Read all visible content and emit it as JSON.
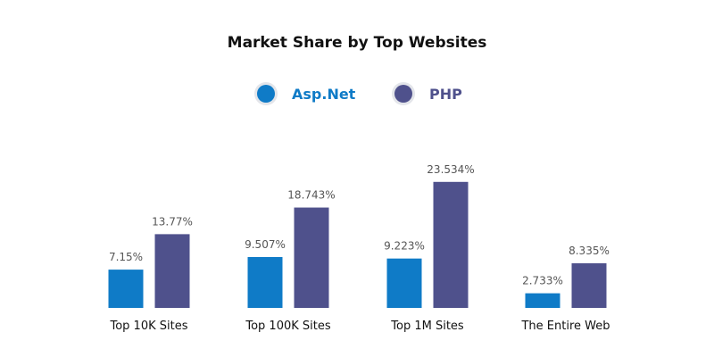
{
  "chart_data": {
    "type": "bar",
    "title": "Market Share by Top Websites",
    "categories": [
      "Top 10K Sites",
      "Top 100K Sites",
      "Top 1M Sites",
      "The Entire Web"
    ],
    "series": [
      {
        "name": "Asp.Net",
        "color": "#0f7bc7",
        "values": [
          7.15,
          9.507,
          9.223,
          2.733
        ],
        "labels": [
          "7.15%",
          "9.507%",
          "9.223%",
          "2.733%"
        ]
      },
      {
        "name": "PHP",
        "color": "#4f518c",
        "values": [
          13.77,
          18.743,
          23.534,
          8.335
        ],
        "labels": [
          "13.77%",
          "18.743%",
          "23.534%",
          "8.335%"
        ]
      }
    ],
    "ylim": [
      0,
      25
    ],
    "grid": false,
    "legend": "top-center",
    "xlabel": "",
    "ylabel": ""
  }
}
